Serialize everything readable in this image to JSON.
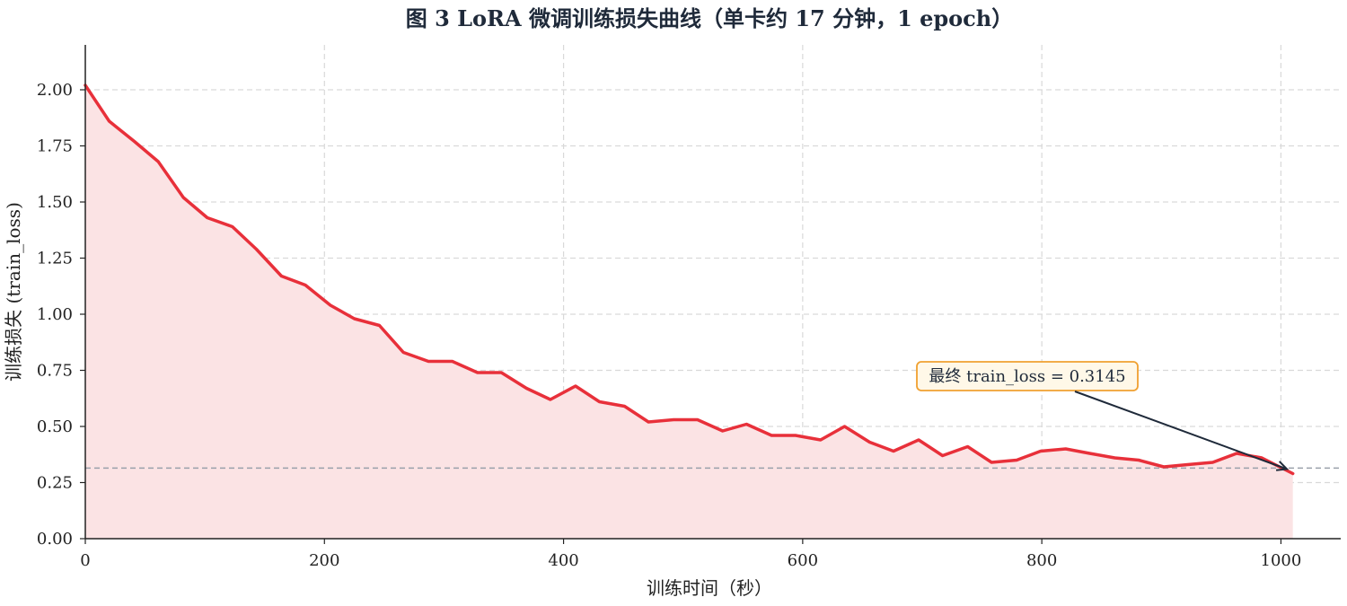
{
  "chart_data": {
    "type": "line",
    "title": "图 3  LoRA 微调训练损失曲线（单卡约 17 分钟，1 epoch）",
    "xlabel": "训练时间（秒）",
    "ylabel": "训练损失 (train_loss)",
    "xlim": [
      0,
      1050
    ],
    "ylim": [
      0,
      2.2
    ],
    "x_ticks": [
      0,
      200,
      400,
      600,
      800,
      1000
    ],
    "y_ticks": [
      0.0,
      0.25,
      0.5,
      0.75,
      1.0,
      1.25,
      1.5,
      1.75,
      2.0
    ],
    "x_tick_labels": [
      "0",
      "200",
      "400",
      "600",
      "800",
      "1000"
    ],
    "y_tick_labels": [
      "0.00",
      "0.25",
      "0.50",
      "0.75",
      "1.00",
      "1.25",
      "1.50",
      "1.75",
      "2.00"
    ],
    "grid": true,
    "series": [
      {
        "color": "#e8303a",
        "fill_color": "#fbe3e4",
        "x": [
          0,
          20,
          41,
          61,
          82,
          102,
          123,
          143,
          164,
          184,
          205,
          225,
          246,
          266,
          287,
          307,
          328,
          348,
          369,
          389,
          410,
          430,
          451,
          471,
          492,
          512,
          533,
          553,
          574,
          594,
          615,
          635,
          656,
          676,
          697,
          717,
          738,
          758,
          779,
          799,
          820,
          840,
          861,
          881,
          902,
          922,
          943,
          963,
          984,
          1010
        ],
        "values": [
          2.02,
          1.86,
          1.77,
          1.68,
          1.52,
          1.43,
          1.39,
          1.29,
          1.17,
          1.13,
          1.04,
          0.98,
          0.95,
          0.83,
          0.79,
          0.79,
          0.74,
          0.74,
          0.67,
          0.62,
          0.68,
          0.61,
          0.59,
          0.52,
          0.53,
          0.53,
          0.48,
          0.51,
          0.46,
          0.46,
          0.44,
          0.5,
          0.43,
          0.39,
          0.44,
          0.37,
          0.41,
          0.34,
          0.35,
          0.39,
          0.4,
          0.38,
          0.36,
          0.35,
          0.32,
          0.33,
          0.34,
          0.38,
          0.36,
          0.29
        ]
      }
    ],
    "reference_line": {
      "y": 0.3145,
      "color": "#9aa0aa"
    },
    "annotation": {
      "text": "最终 train_loss = 0.3145",
      "target_x": 1005,
      "target_y": 0.31,
      "box_border_color": "#f0a030",
      "box_fill_color": "#fff8e8"
    }
  }
}
